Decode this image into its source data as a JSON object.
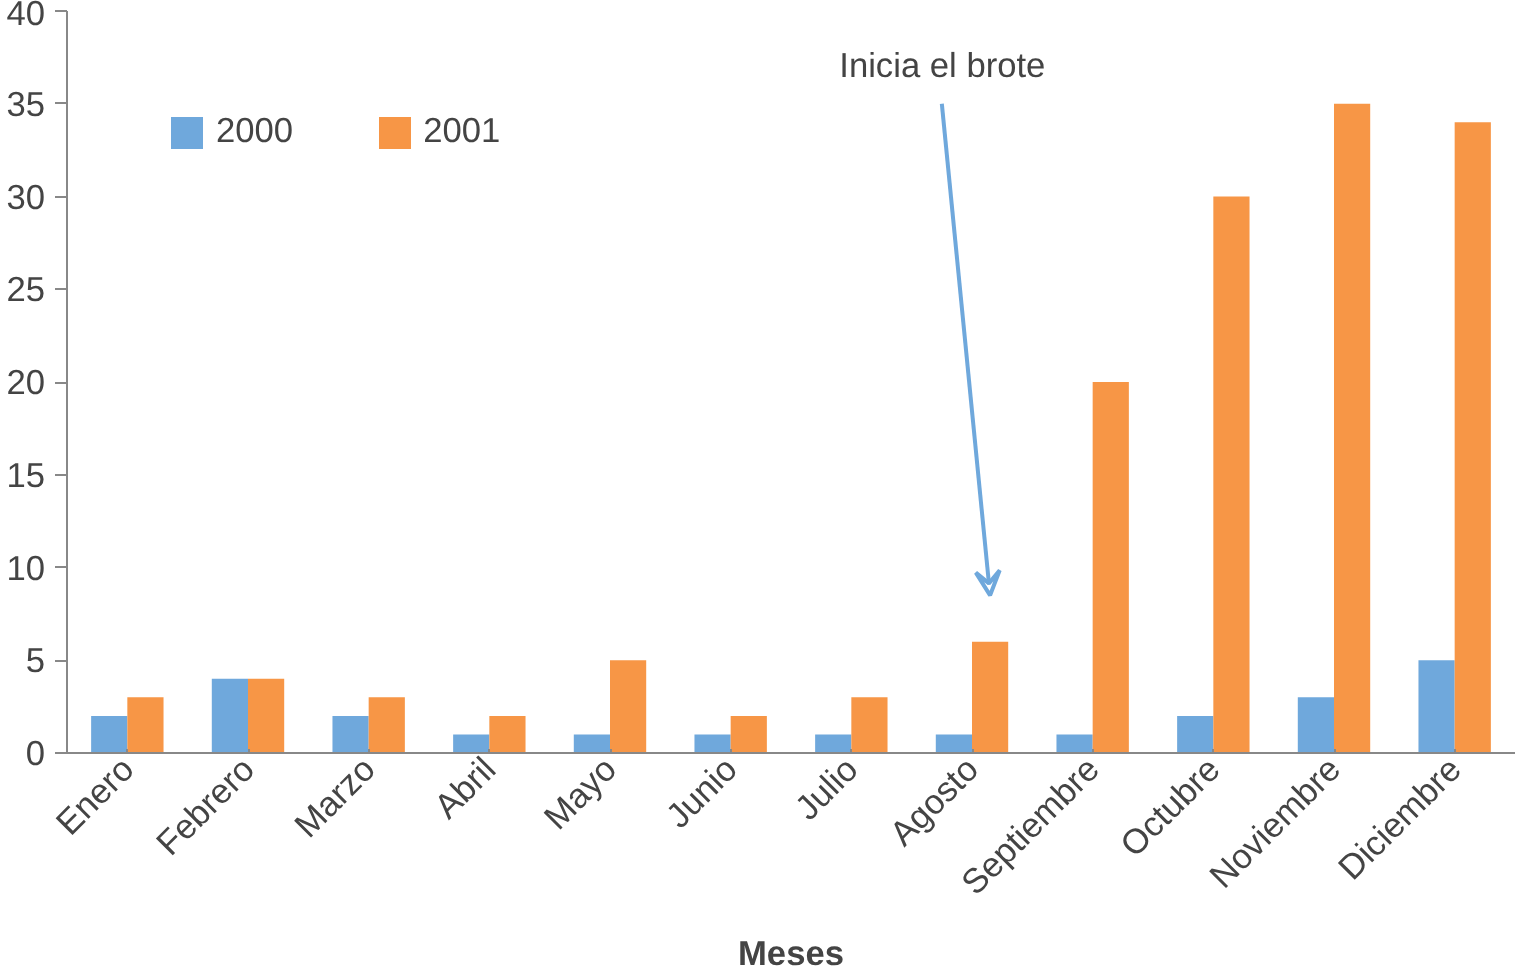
{
  "chart_data": {
    "type": "bar",
    "xlabel": "Meses",
    "categories": [
      "Enero",
      "Febrero",
      "Marzo",
      "Abril",
      "Mayo",
      "Junio",
      "Julio",
      "Agosto",
      "Septiembre",
      "Octubre",
      "Noviembre",
      "Diciembre"
    ],
    "series": [
      {
        "name": "2000",
        "color": "#6fa8dc",
        "values": [
          2,
          4,
          2,
          1,
          1,
          1,
          1,
          1,
          1,
          2,
          3,
          5
        ]
      },
      {
        "name": "2001",
        "color": "#f79646",
        "values": [
          3,
          4,
          3,
          2,
          5,
          2,
          3,
          6,
          20,
          30,
          35,
          34
        ]
      }
    ],
    "ylim": [
      0,
      40
    ],
    "yticks": [
      0,
      5,
      10,
      15,
      20,
      25,
      30,
      35,
      40
    ],
    "grid": false,
    "legend": "top left",
    "annotations": [
      "Inicia el brote"
    ]
  }
}
